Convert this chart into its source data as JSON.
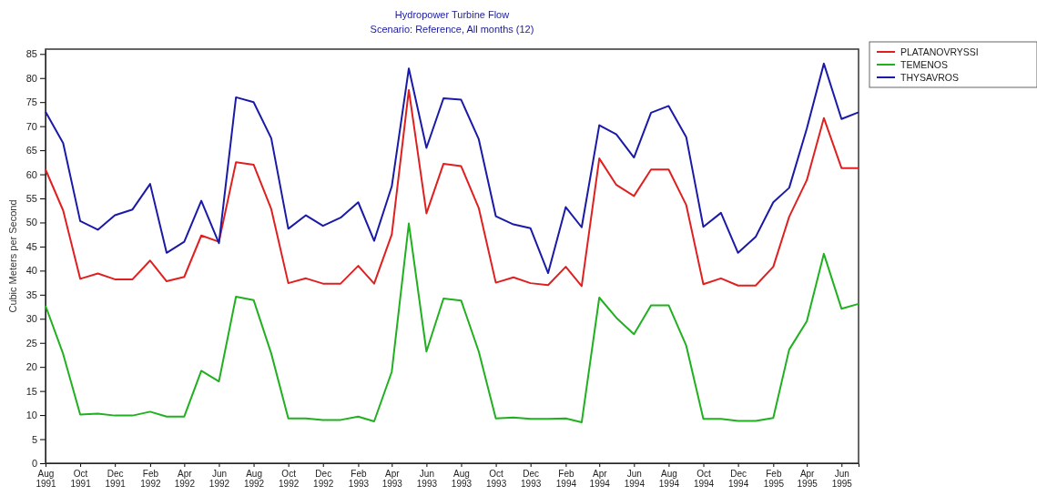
{
  "chart_data": {
    "type": "line",
    "title": "Hydropower Turbine Flow",
    "subtitle": "Scenario: Reference,  All months (12)",
    "ylabel": "Cubic Meters per Second",
    "x": [
      "1991-08",
      "1991-09",
      "1991-10",
      "1991-11",
      "1991-12",
      "1992-01",
      "1992-02",
      "1992-03",
      "1992-04",
      "1992-05",
      "1992-06",
      "1992-07",
      "1992-08",
      "1992-09",
      "1992-10",
      "1992-11",
      "1992-12",
      "1993-01",
      "1993-02",
      "1993-03",
      "1993-04",
      "1993-05",
      "1993-06",
      "1993-07",
      "1993-08",
      "1993-09",
      "1993-10",
      "1993-11",
      "1993-12",
      "1994-01",
      "1994-02",
      "1994-03",
      "1994-04",
      "1994-05",
      "1994-06",
      "1994-07",
      "1994-08",
      "1994-09",
      "1994-10",
      "1994-11",
      "1994-12",
      "1995-01",
      "1995-02",
      "1995-03",
      "1995-04",
      "1995-05",
      "1995-06",
      "1995-07"
    ],
    "series": [
      {
        "name": "PLATANOVRYSSI",
        "color": "#e02020",
        "values": [
          61,
          52.5,
          38.3,
          39.4,
          38.2,
          38.2,
          42.1,
          37.8,
          38.7,
          47.3,
          46,
          62.5,
          62,
          52.8,
          37.4,
          38.4,
          37.3,
          37.3,
          41,
          37.3,
          47.5,
          77.5,
          51.9,
          62.2,
          61.7,
          53,
          37.5,
          38.6,
          37.4,
          37,
          40.8,
          36.8,
          63.3,
          57.8,
          55.5,
          61,
          61,
          53.6,
          37.2,
          38.4,
          36.9,
          36.9,
          40.8,
          51.2,
          58.8,
          71.7,
          61.3,
          61.3
        ]
      },
      {
        "name": "TEMENOS",
        "color": "#20b020",
        "values": [
          32.7,
          22.7,
          10.1,
          10.3,
          9.9,
          9.9,
          10.7,
          9.7,
          9.7,
          19.2,
          17,
          34.6,
          33.9,
          22.8,
          9.3,
          9.3,
          9,
          9,
          9.7,
          8.7,
          19,
          49.8,
          23.2,
          34.2,
          33.8,
          23.2,
          9.3,
          9.5,
          9.2,
          9.2,
          9.3,
          8.5,
          34.4,
          30.2,
          26.8,
          32.8,
          32.8,
          24.4,
          9.2,
          9.2,
          8.8,
          8.8,
          9.4,
          23.6,
          29.5,
          43.5,
          32.1,
          33.1
        ]
      },
      {
        "name": "THYSAVROS",
        "color": "#1a1aa8",
        "values": [
          73,
          66.5,
          50.3,
          48.5,
          51.5,
          52.7,
          58,
          43.7,
          46,
          54.5,
          45.7,
          76,
          75,
          67.5,
          48.7,
          51.5,
          49.3,
          51,
          54.2,
          46.2,
          57.5,
          82,
          65.5,
          75.8,
          75.5,
          67.3,
          51.3,
          49.6,
          48.8,
          39.5,
          53.2,
          49,
          70.2,
          68.3,
          63.5,
          72.8,
          74.2,
          67.7,
          49.1,
          52,
          43.7,
          47,
          54.2,
          57.2,
          69.5,
          83,
          71.5,
          72.9
        ]
      }
    ],
    "xlim": [
      "1991-08",
      "1995-07"
    ],
    "xticks": [
      {
        "value": "1991-08",
        "label": "Aug\n1991"
      },
      {
        "value": "1991-10",
        "label": "Oct\n1991"
      },
      {
        "value": "1991-12",
        "label": "Dec\n1991"
      },
      {
        "value": "1992-02",
        "label": "Feb\n1992"
      },
      {
        "value": "1992-04",
        "label": "Apr\n1992"
      },
      {
        "value": "1992-06",
        "label": "Jun\n1992"
      },
      {
        "value": "1992-08",
        "label": "Aug\n1992"
      },
      {
        "value": "1992-10",
        "label": "Oct\n1992"
      },
      {
        "value": "1992-12",
        "label": "Dec\n1992"
      },
      {
        "value": "1993-02",
        "label": "Feb\n1993"
      },
      {
        "value": "1993-04",
        "label": "Apr\n1993"
      },
      {
        "value": "1993-06",
        "label": "Jun\n1993"
      },
      {
        "value": "1993-08",
        "label": "Aug\n1993"
      },
      {
        "value": "1993-10",
        "label": "Oct\n1993"
      },
      {
        "value": "1993-12",
        "label": "Dec\n1993"
      },
      {
        "value": "1994-02",
        "label": "Feb\n1994"
      },
      {
        "value": "1994-04",
        "label": "Apr\n1994"
      },
      {
        "value": "1994-06",
        "label": "Jun\n1994"
      },
      {
        "value": "1994-08",
        "label": "Aug\n1994"
      },
      {
        "value": "1994-10",
        "label": "Oct\n1994"
      },
      {
        "value": "1994-12",
        "label": "Dec\n1994"
      },
      {
        "value": "1995-02",
        "label": "Feb\n1995"
      },
      {
        "value": "1995-04",
        "label": "Apr\n1995"
      },
      {
        "value": "1995-06",
        "label": "Jun\n1995"
      }
    ],
    "ylim": [
      0,
      86
    ],
    "yticks": [
      0,
      5,
      10,
      15,
      20,
      25,
      30,
      35,
      40,
      45,
      50,
      55,
      60,
      65,
      70,
      75,
      80,
      85
    ],
    "grid": false,
    "legend": "top right",
    "line_style": "solid",
    "marker": "none"
  }
}
